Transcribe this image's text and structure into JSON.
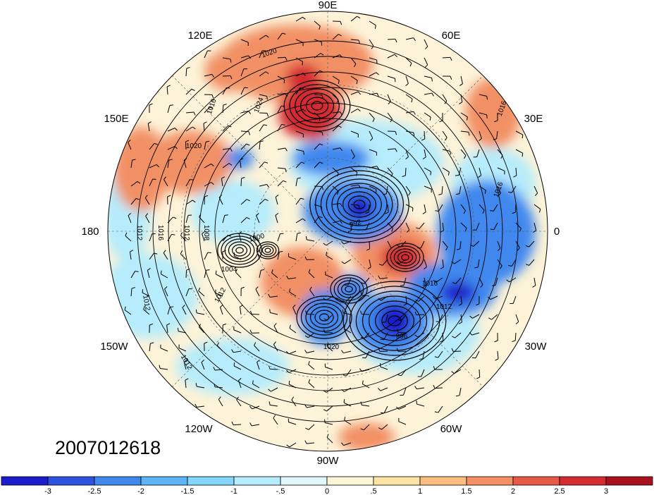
{
  "date_label": "2007012618",
  "longitude_labels": {
    "n": "90E",
    "ne": "60E",
    "nne": "120E",
    "e": "30E",
    "wne": "150E",
    "w": "180",
    "east0": "0",
    "wsw": "150W",
    "se30": "30W",
    "s120": "120W",
    "s60": "60W",
    "s": "90W"
  },
  "contour_labels": [
    "1020",
    "1016",
    "1020",
    "1024",
    "1012",
    "1008",
    "1012",
    "1016",
    "992",
    "1000",
    "1004",
    "1012",
    "1016",
    "1012",
    "1016",
    "1012",
    "996",
    "1020",
    "1016",
    "1012"
  ],
  "colorbar": {
    "colors": [
      "#1c1ccc",
      "#2c53e0",
      "#3f88ee",
      "#5db5f6",
      "#84d6fa",
      "#b6ecfb",
      "#e0f6fb",
      "#fdf6d6",
      "#fde3a6",
      "#fbbd80",
      "#f59063",
      "#e85a48",
      "#d42a32",
      "#a8121e"
    ],
    "tick_labels": [
      "-3",
      "-2.5",
      "-2",
      "-1.5",
      "-1",
      "-.5",
      "0",
      ".5",
      "1",
      "1.5",
      "2",
      "2.5",
      "3"
    ]
  },
  "field_colors": {
    "base": "#fdf3d8",
    "warm": "#f29065",
    "hot": "#d42a32",
    "cold": "#3f88ee",
    "deep_cold": "#1c1ccc",
    "cool": "#b6ecfb",
    "contour": "#000000"
  }
}
